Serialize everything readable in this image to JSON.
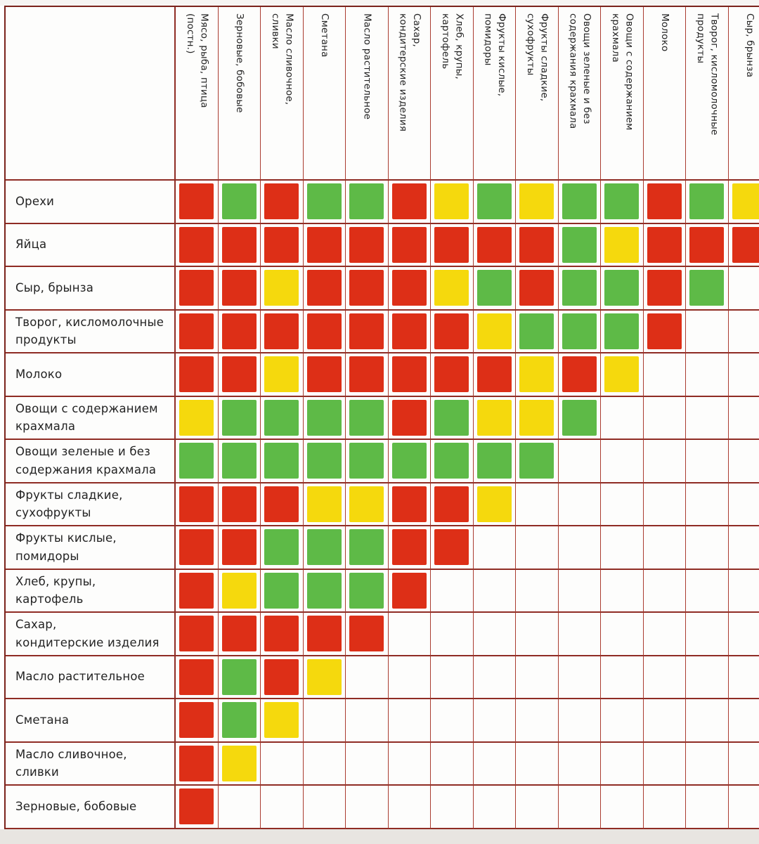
{
  "chart_data": {
    "type": "heatmap",
    "description": "Food compatibility matrix (triangular): rows x columns, cell values are compatibility colors",
    "columns": [
      "Мясо, рыба, птица\n(постн.)",
      "Зерновые, бобовые",
      "Масло сливочное,\nсливки",
      "Сметана",
      "Масло растительное",
      "Сахар,\nкондитерские изделия",
      "Хлеб, крупы,\nкартофель",
      "Фрукты кислые,\nпомидоры",
      "Фрукты сладкие,\nсухофрукты",
      "Овощи зеленые и без\nсодержания крахмала",
      "Овощи с содержанием\nкрахмала",
      "Молоко",
      "Творог, кисломолочные\nпродукты",
      "Сыр, брынза"
    ],
    "rows": [
      {
        "label": "Орехи",
        "cells": [
          "red",
          "green",
          "red",
          "green",
          "green",
          "red",
          "yellow",
          "green",
          "yellow",
          "green",
          "green",
          "red",
          "green",
          "yellow"
        ]
      },
      {
        "label": "Яйца",
        "cells": [
          "red",
          "red",
          "red",
          "red",
          "red",
          "red",
          "red",
          "red",
          "red",
          "green",
          "yellow",
          "red",
          "red",
          "red"
        ]
      },
      {
        "label": "Сыр, брынза",
        "cells": [
          "red",
          "red",
          "yellow",
          "red",
          "red",
          "red",
          "yellow",
          "green",
          "red",
          "green",
          "green",
          "red",
          "green",
          null
        ]
      },
      {
        "label": "Творог, кисломолочные\nпродукты",
        "cells": [
          "red",
          "red",
          "red",
          "red",
          "red",
          "red",
          "red",
          "yellow",
          "green",
          "green",
          "green",
          "red",
          null,
          null
        ]
      },
      {
        "label": "Молоко",
        "cells": [
          "red",
          "red",
          "yellow",
          "red",
          "red",
          "red",
          "red",
          "red",
          "yellow",
          "red",
          "yellow",
          null,
          null,
          null
        ]
      },
      {
        "label": "Овощи с содержанием\nкрахмала",
        "cells": [
          "yellow",
          "green",
          "green",
          "green",
          "green",
          "red",
          "green",
          "yellow",
          "yellow",
          "green",
          null,
          null,
          null,
          null
        ]
      },
      {
        "label": "Овощи зеленые и без\nсодержания крахмала",
        "cells": [
          "green",
          "green",
          "green",
          "green",
          "green",
          "green",
          "green",
          "green",
          "green",
          null,
          null,
          null,
          null,
          null
        ]
      },
      {
        "label": "Фрукты сладкие,\nсухофрукты",
        "cells": [
          "red",
          "red",
          "red",
          "yellow",
          "yellow",
          "red",
          "red",
          "yellow",
          null,
          null,
          null,
          null,
          null,
          null
        ]
      },
      {
        "label": "Фрукты кислые,\nпомидоры",
        "cells": [
          "red",
          "red",
          "green",
          "green",
          "green",
          "red",
          "red",
          null,
          null,
          null,
          null,
          null,
          null,
          null
        ]
      },
      {
        "label": "Хлеб, крупы,\nкартофель",
        "cells": [
          "red",
          "yellow",
          "green",
          "green",
          "green",
          "red",
          null,
          null,
          null,
          null,
          null,
          null,
          null,
          null
        ]
      },
      {
        "label": "Сахар,\nкондитерские изделия",
        "cells": [
          "red",
          "red",
          "red",
          "red",
          "red",
          null,
          null,
          null,
          null,
          null,
          null,
          null,
          null,
          null
        ]
      },
      {
        "label": "Масло растительное",
        "cells": [
          "red",
          "green",
          "red",
          "yellow",
          null,
          null,
          null,
          null,
          null,
          null,
          null,
          null,
          null,
          null
        ]
      },
      {
        "label": "Сметана",
        "cells": [
          "red",
          "green",
          "yellow",
          null,
          null,
          null,
          null,
          null,
          null,
          null,
          null,
          null,
          null,
          null
        ]
      },
      {
        "label": "Масло сливочное,\nсливки",
        "cells": [
          "red",
          "yellow",
          null,
          null,
          null,
          null,
          null,
          null,
          null,
          null,
          null,
          null,
          null,
          null
        ]
      },
      {
        "label": "Зерновые, бобовые",
        "cells": [
          "red",
          null,
          null,
          null,
          null,
          null,
          null,
          null,
          null,
          null,
          null,
          null,
          null,
          null
        ]
      }
    ],
    "cell_colors": {
      "red": "#dd2f17",
      "green": "#5eba47",
      "yellow": "#f5d90d"
    },
    "grid_color": "#aa3c30",
    "row_line_color": "#8f2c24",
    "outer_border_color": "#7b231c",
    "background_color": "#fdfdfc",
    "page_strip_color": "#e8e5e1",
    "legend_position": "none",
    "grid": true
  }
}
